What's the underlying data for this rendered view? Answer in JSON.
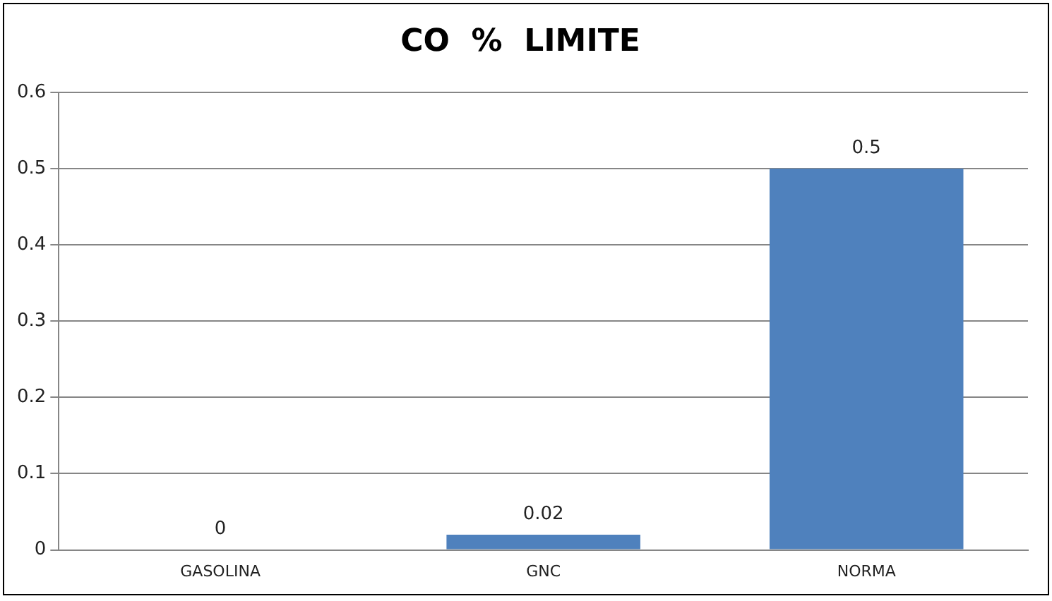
{
  "chart_data": {
    "type": "bar",
    "title": "CO  %  LIMITE",
    "categories": [
      "GASOLINA",
      "GNC",
      "NORMA"
    ],
    "values": [
      0,
      0.02,
      0.5
    ],
    "color": "#4f81bd",
    "ylim": [
      0,
      0.6
    ],
    "yticks": [
      0,
      0.1,
      0.2,
      0.3,
      0.4,
      0.5,
      0.6
    ],
    "grid": "y",
    "data_labels": true,
    "legend": false
  }
}
